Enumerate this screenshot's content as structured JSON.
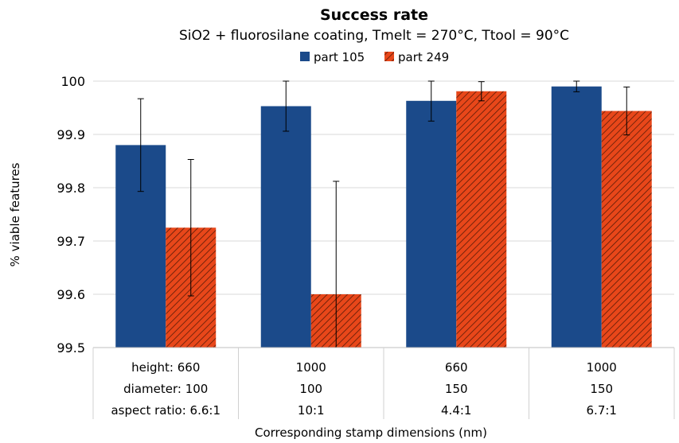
{
  "chart_data": {
    "type": "bar",
    "title": "Success rate",
    "subtitle": "SiO2 + fluorosilane coating, Tmelt = 270°C, Ttool = 90°C",
    "ylabel": "% viable features",
    "xlabel": "Corresponding stamp dimensions (nm)",
    "ylim": [
      99.5,
      100
    ],
    "yticks": [
      "99.5",
      "99.6",
      "99.7",
      "99.8",
      "99.9",
      "100"
    ],
    "grid": true,
    "legend_position": "top-center",
    "categories": [
      [
        "height: 660",
        "diameter: 100",
        "aspect ratio: 6.6:1"
      ],
      [
        "1000",
        "100",
        "10:1"
      ],
      [
        "660",
        "150",
        "4.4:1"
      ],
      [
        "1000",
        "150",
        "6.7:1"
      ]
    ],
    "series": [
      {
        "name": "part 105",
        "color": "#1b4a8a",
        "pattern": "solid",
        "values": [
          99.88,
          99.953,
          99.963,
          99.99
        ],
        "error": [
          0.087,
          0.047,
          0.038,
          0.01
        ]
      },
      {
        "name": "part 249",
        "color": "#e8471a",
        "pattern": "hatched",
        "values": [
          99.725,
          99.6,
          99.981,
          99.944
        ],
        "error": [
          0.128,
          0.212,
          0.018,
          0.045
        ]
      }
    ]
  }
}
